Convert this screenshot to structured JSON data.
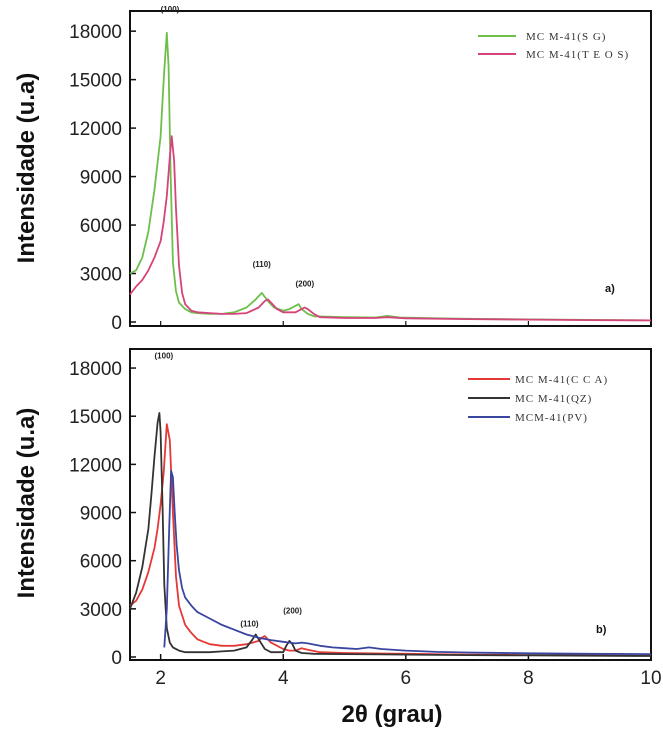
{
  "chart_data": [
    {
      "type": "line",
      "panel_label": "a)",
      "ylabel": "Intensidade (u.a)",
      "xlabel": "",
      "xlim": [
        1.5,
        10
      ],
      "ylim": [
        0,
        19000
      ],
      "y_ticks": [
        0,
        3000,
        6000,
        9000,
        12000,
        15000,
        18000
      ],
      "y_tick_labels": [
        "0",
        "3000",
        "6000",
        "9000",
        "12000",
        "15000",
        "18000"
      ],
      "grid": false,
      "legend_position": "top-right",
      "annotations": [
        {
          "text": "(100)",
          "x": 2.0,
          "y": 19200
        },
        {
          "text": "(110)",
          "x": 3.5,
          "y": 3400
        },
        {
          "text": "(200)",
          "x": 4.2,
          "y": 2200
        }
      ],
      "series": [
        {
          "name": "MC M-41(S G)",
          "color": "#6dbf4b",
          "x": [
            1.5,
            1.6,
            1.7,
            1.8,
            1.9,
            2.0,
            2.05,
            2.1,
            2.13,
            2.16,
            2.2,
            2.25,
            2.3,
            2.4,
            2.5,
            2.6,
            2.8,
            3.0,
            3.2,
            3.4,
            3.55,
            3.65,
            3.75,
            3.85,
            4.0,
            4.1,
            4.2,
            4.25,
            4.3,
            4.4,
            4.5,
            5.0,
            5.5,
            5.7,
            5.9,
            6.5,
            7.0,
            8.0,
            9.0,
            10.0
          ],
          "y": [
            3000,
            3200,
            4000,
            5600,
            8200,
            11500,
            15000,
            17900,
            15800,
            9500,
            3700,
            1900,
            1200,
            800,
            600,
            550,
            500,
            500,
            600,
            900,
            1400,
            1800,
            1300,
            900,
            700,
            800,
            1000,
            1100,
            800,
            500,
            350,
            300,
            280,
            380,
            280,
            230,
            200,
            160,
            130,
            100
          ]
        },
        {
          "name": "MC M-41(T E O S)",
          "color": "#d6437a",
          "x": [
            1.5,
            1.6,
            1.7,
            1.8,
            1.9,
            2.0,
            2.05,
            2.1,
            2.15,
            2.18,
            2.22,
            2.25,
            2.3,
            2.35,
            2.4,
            2.5,
            2.6,
            2.8,
            3.0,
            3.2,
            3.4,
            3.6,
            3.7,
            3.75,
            3.8,
            3.9,
            4.0,
            4.2,
            4.3,
            4.35,
            4.4,
            4.5,
            4.6,
            5.0,
            5.5,
            5.7,
            6.0,
            7.0,
            8.0,
            9.0,
            10.0
          ],
          "y": [
            1700,
            2200,
            2600,
            3200,
            4000,
            5000,
            6200,
            7800,
            10200,
            11500,
            10000,
            7000,
            3500,
            1800,
            1100,
            700,
            600,
            550,
            500,
            500,
            550,
            900,
            1300,
            1400,
            1200,
            800,
            600,
            600,
            800,
            900,
            800,
            500,
            300,
            250,
            250,
            300,
            230,
            180,
            150,
            120,
            100
          ]
        }
      ]
    },
    {
      "type": "line",
      "panel_label": "b)",
      "ylabel": "Intensidade (u.a)",
      "xlabel": "2θ (grau)",
      "xlim": [
        1.5,
        10
      ],
      "ylim": [
        0,
        19000
      ],
      "x_ticks": [
        2,
        4,
        6,
        8,
        10
      ],
      "x_tick_labels": [
        "2",
        "4",
        "6",
        "8",
        "10"
      ],
      "y_ticks": [
        0,
        3000,
        6000,
        9000,
        12000,
        15000,
        18000
      ],
      "y_tick_labels": [
        "0",
        "3000",
        "6000",
        "9000",
        "12000",
        "15000",
        "18000"
      ],
      "grid": false,
      "legend_position": "top-right",
      "annotations": [
        {
          "text": "(100)",
          "x": 1.9,
          "y": 18600
        },
        {
          "text": "(110)",
          "x": 3.3,
          "y": 1900
        },
        {
          "text": "(200)",
          "x": 4.0,
          "y": 2700
        }
      ],
      "series": [
        {
          "name": "MC M-41(C C A)",
          "color": "#e53935",
          "x": [
            1.5,
            1.6,
            1.7,
            1.8,
            1.9,
            1.95,
            2.0,
            2.05,
            2.1,
            2.15,
            2.2,
            2.25,
            2.3,
            2.4,
            2.5,
            2.6,
            2.8,
            3.0,
            3.2,
            3.4,
            3.5,
            3.6,
            3.65,
            3.7,
            3.8,
            4.0,
            4.1,
            4.2,
            4.3,
            4.4,
            4.6,
            5.0,
            6.0,
            7.0,
            8.0,
            9.0,
            10.0
          ],
          "y": [
            3200,
            3500,
            4200,
            5300,
            6800,
            8000,
            9500,
            11500,
            14500,
            13500,
            9000,
            5000,
            3200,
            2000,
            1500,
            1100,
            800,
            700,
            700,
            800,
            900,
            1000,
            1200,
            1300,
            900,
            500,
            400,
            400,
            550,
            450,
            300,
            250,
            200,
            150,
            120,
            100,
            80
          ]
        },
        {
          "name": "MC M-41(QZ)",
          "color": "#333333",
          "x": [
            1.5,
            1.6,
            1.7,
            1.8,
            1.85,
            1.9,
            1.95,
            1.98,
            2.0,
            2.03,
            2.06,
            2.1,
            2.15,
            2.2,
            2.3,
            2.4,
            2.6,
            2.8,
            3.0,
            3.2,
            3.4,
            3.5,
            3.55,
            3.6,
            3.7,
            3.8,
            4.0,
            4.05,
            4.1,
            4.15,
            4.2,
            4.3,
            4.5,
            5.0,
            6.0,
            7.0,
            8.0,
            9.0,
            10.0
          ],
          "y": [
            3000,
            4000,
            5600,
            8000,
            10200,
            12500,
            14600,
            15200,
            14000,
            9500,
            4500,
            1800,
            900,
            600,
            400,
            300,
            300,
            300,
            350,
            400,
            600,
            1100,
            1400,
            1100,
            500,
            300,
            300,
            700,
            1000,
            800,
            400,
            250,
            200,
            180,
            150,
            120,
            100,
            80,
            60
          ]
        },
        {
          "name": "MCM-41(PV)",
          "color": "#3a45a0",
          "x": [
            2.06,
            2.1,
            2.14,
            2.17,
            2.2,
            2.23,
            2.26,
            2.3,
            2.35,
            2.4,
            2.5,
            2.6,
            2.8,
            3.0,
            3.2,
            3.4,
            3.6,
            3.8,
            4.0,
            4.1,
            4.2,
            4.3,
            4.4,
            4.6,
            4.8,
            5.0,
            5.2,
            5.4,
            5.6,
            6.0,
            6.5,
            7.0,
            8.0,
            9.0,
            10.0
          ],
          "y": [
            600,
            3000,
            8000,
            11600,
            11200,
            9000,
            7000,
            5400,
            4300,
            3700,
            3200,
            2800,
            2400,
            2000,
            1700,
            1400,
            1200,
            1050,
            950,
            900,
            850,
            900,
            850,
            700,
            600,
            550,
            500,
            600,
            500,
            400,
            320,
            280,
            230,
            200,
            180
          ]
        }
      ]
    }
  ]
}
